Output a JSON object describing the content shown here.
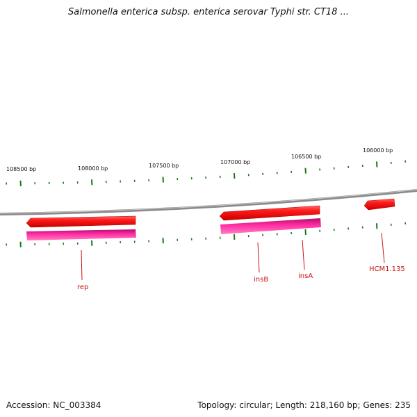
{
  "title": "Salmonella enterica subsp. enterica serovar Typhi str. CT18 ...",
  "footer": {
    "accession": "Accession: NC_003384",
    "summary": "Topology: circular; Length: 218,160 bp; Genes: 235"
  },
  "scale_labels": [
    {
      "text": "108500 bp"
    },
    {
      "text": "108000 bp"
    },
    {
      "text": "107500 bp"
    },
    {
      "text": "107000 bp"
    },
    {
      "text": "106500 bp"
    },
    {
      "text": "106000 bp"
    }
  ],
  "genes": [
    {
      "label": "rep"
    },
    {
      "label": "insB"
    },
    {
      "label": "insA"
    },
    {
      "label": "HCM1.135"
    }
  ],
  "colors": {
    "backbone": "#888888",
    "cds": "#ff1a1a",
    "gene": "#e0107a",
    "tick": "#1a7a1a",
    "label": "#cc1111"
  }
}
